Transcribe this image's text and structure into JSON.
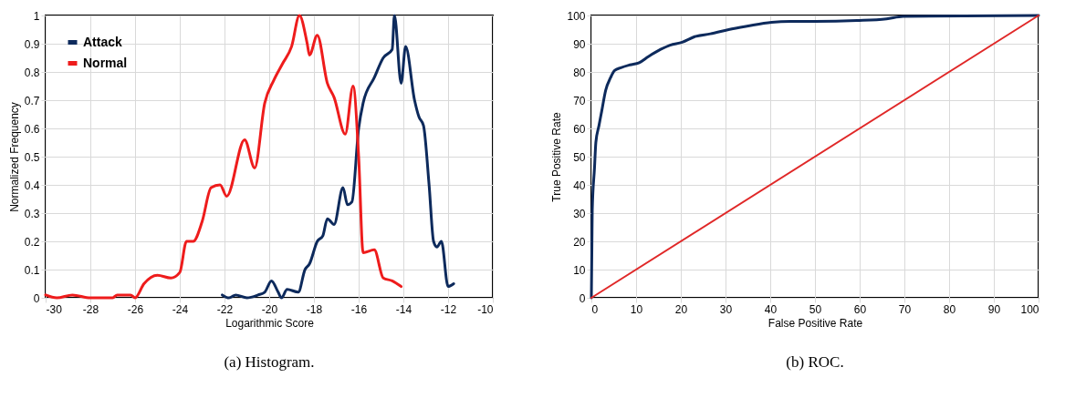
{
  "chart_data": [
    {
      "type": "line",
      "title": "(a) Histogram.",
      "xlabel": "Logarithmic Score",
      "ylabel": "Normalized Frequency",
      "xlim": [
        -30,
        -10
      ],
      "xticks": [
        -30,
        -28,
        -26,
        -24,
        -22,
        -20,
        -18,
        -16,
        -14,
        -12,
        -10
      ],
      "ylim": [
        0,
        1
      ],
      "yticks": [
        0,
        0.1,
        0.2,
        0.3,
        0.4,
        0.5,
        0.6,
        0.7,
        0.8,
        0.9,
        1
      ],
      "grid": true,
      "legend": "top left",
      "series": [
        {
          "name": "Attack",
          "color": "#0d2a5c",
          "x": [
            -22.1,
            -21.8,
            -21.5,
            -21.0,
            -20.5,
            -20.2,
            -19.9,
            -19.6,
            -19.45,
            -19.2,
            -18.7,
            -18.4,
            -18.2,
            -17.85,
            -17.6,
            -17.4,
            -17.1,
            -16.7,
            -16.5,
            -16.3,
            -16.0,
            -15.8,
            -15.3,
            -14.9,
            -14.5,
            -14.4,
            -14.1,
            -13.9,
            -13.5,
            -13.3,
            -13.1,
            -12.85,
            -12.65,
            -12.5,
            -12.3,
            -12.0,
            -11.75
          ],
          "values": [
            0.01,
            0,
            0.01,
            0,
            0.01,
            0.02,
            0.06,
            0.02,
            0,
            0.03,
            0.02,
            0.1,
            0.12,
            0.2,
            0.22,
            0.28,
            0.26,
            0.39,
            0.33,
            0.34,
            0.6,
            0.69,
            0.78,
            0.85,
            0.88,
            1.0,
            0.76,
            0.89,
            0.7,
            0.64,
            0.61,
            0.4,
            0.2,
            0.18,
            0.2,
            0.04,
            0.05
          ]
        },
        {
          "name": "Normal",
          "color": "#ee1c1c",
          "x": [
            -30,
            -29.5,
            -28.8,
            -28,
            -27,
            -26.8,
            -26.2,
            -26,
            -25.6,
            -25,
            -24.4,
            -24,
            -23.7,
            -23.4,
            -23,
            -22.6,
            -22.2,
            -21.9,
            -21.1,
            -20.65,
            -20.2,
            -19.8,
            -19.4,
            -19.0,
            -18.65,
            -18.3,
            -18.2,
            -17.85,
            -17.4,
            -17.1,
            -16.6,
            -16.25,
            -16.0,
            -15.8,
            -15.3,
            -14.9,
            -14.5,
            -14.1
          ],
          "values": [
            0.01,
            0,
            0.01,
            0,
            0,
            0.01,
            0.01,
            0,
            0.05,
            0.08,
            0.07,
            0.09,
            0.2,
            0.2,
            0.27,
            0.39,
            0.4,
            0.36,
            0.56,
            0.46,
            0.69,
            0.77,
            0.83,
            0.89,
            1.0,
            0.9,
            0.86,
            0.93,
            0.76,
            0.71,
            0.58,
            0.75,
            0.5,
            0.16,
            0.17,
            0.07,
            0.06,
            0.04
          ]
        }
      ]
    },
    {
      "type": "line",
      "title": "(b) ROC.",
      "xlabel": "False Positive Rate",
      "ylabel": "True Positive Rate",
      "xlim": [
        0,
        100
      ],
      "xticks": [
        0,
        10,
        20,
        30,
        40,
        50,
        60,
        70,
        80,
        90,
        100
      ],
      "ylim": [
        0,
        100
      ],
      "yticks": [
        0,
        10,
        20,
        30,
        40,
        50,
        60,
        70,
        80,
        90,
        100
      ],
      "grid": true,
      "series": [
        {
          "color": "#0d2a5c",
          "x": [
            0,
            0.2,
            0.7,
            1.0,
            1.7,
            2.3,
            3.2,
            4.3,
            5.2,
            6.6,
            8.6,
            10.7,
            12.8,
            15.5,
            17.6,
            20.3,
            23.1,
            26.6,
            30.7,
            34.8,
            40.3,
            44.5,
            50,
            59.4,
            66,
            69.7,
            100
          ],
          "values": [
            0,
            31,
            46,
            55,
            61,
            66,
            73.5,
            78,
            80.5,
            81.5,
            82.5,
            83.3,
            85.5,
            88,
            89.5,
            90.5,
            92.5,
            93.5,
            95,
            96.2,
            97.6,
            97.9,
            97.9,
            98.2,
            98.8,
            99.7,
            100
          ]
        },
        {
          "color": "#e02828",
          "x": [
            0,
            100
          ],
          "values": [
            0,
            100
          ]
        }
      ]
    }
  ]
}
